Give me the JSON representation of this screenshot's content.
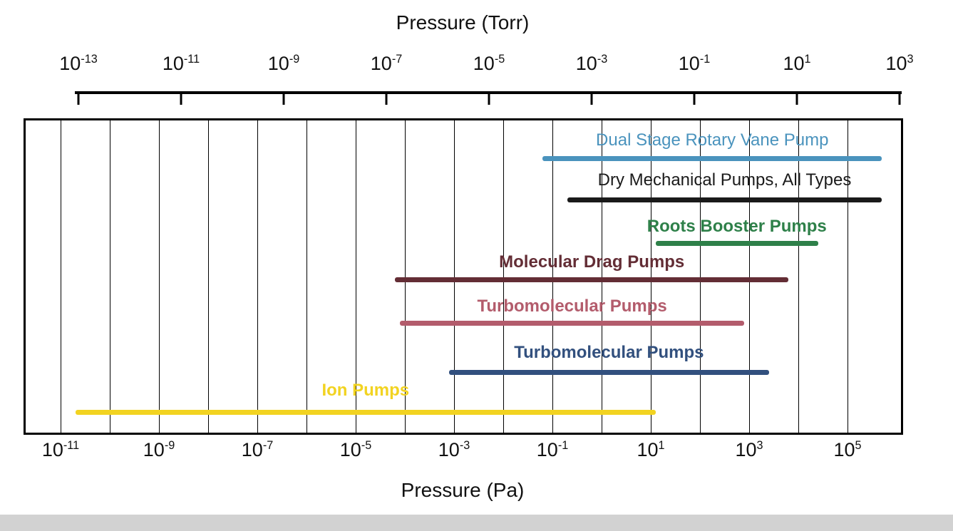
{
  "title_top": "Pressure (Torr)",
  "title_bottom": "Pressure (Pa)",
  "top_axis": {
    "base": "10",
    "exponents": [
      "-13",
      "-11",
      "-9",
      "-7",
      "-5",
      "-3",
      "-1",
      "1",
      "3"
    ],
    "unit": "Torr"
  },
  "bottom_axis": {
    "base": "10",
    "exponents": [
      "-11",
      "-9",
      "-7",
      "-5",
      "-3",
      "-1",
      "1",
      "3",
      "5"
    ],
    "unit": "Pa"
  },
  "chart_data": {
    "type": "bar",
    "subtype": "horizontal-range-bars",
    "title": "Operating pressure ranges of vacuum pumps",
    "xlabel_top": "Pressure (Torr)",
    "xlabel_bottom": "Pressure (Pa)",
    "x_scale": "log10",
    "x_unit": "Pa",
    "xlim_log10_pa": [
      -11.8,
      5.9
    ],
    "grid": true,
    "gridlines_log10_pa": [
      -11,
      -10,
      -9,
      -8,
      -7,
      -6,
      -5,
      -4,
      -3,
      -2,
      -1,
      0,
      1,
      2,
      3,
      4,
      5
    ],
    "legend": "inline-colored-labels",
    "series": [
      {
        "name": "Dual Stage Rotary Vane Pump",
        "color": "#4a93bd",
        "bold": false,
        "range_log10_pa": [
          -1.2,
          5.7
        ],
        "approx_range_pa": [
          0.06,
          500000
        ]
      },
      {
        "name": "Dry Mechanical Pumps, All Types",
        "color": "#1a1a1a",
        "bold": false,
        "range_log10_pa": [
          -0.7,
          5.7
        ],
        "approx_range_pa": [
          0.2,
          500000
        ]
      },
      {
        "name": "Roots Booster Pumps",
        "color": "#2e8049",
        "bold": true,
        "range_log10_pa": [
          1.1,
          4.4
        ],
        "approx_range_pa": [
          13,
          25000
        ]
      },
      {
        "name": "Molecular Drag Pumps",
        "color": "#632d35",
        "bold": true,
        "range_log10_pa": [
          -4.2,
          3.8
        ],
        "approx_range_pa": [
          6e-05,
          6000
        ]
      },
      {
        "name": "Turbomolecular Pumps",
        "color": "#b35c6c",
        "bold": true,
        "range_log10_pa": [
          -4.1,
          2.9
        ],
        "approx_range_pa": [
          8e-05,
          800
        ]
      },
      {
        "name": "Turbomolecular Pumps",
        "color": "#32507e",
        "bold": true,
        "range_log10_pa": [
          -3.1,
          3.4
        ],
        "approx_range_pa": [
          0.0008,
          2500
        ]
      },
      {
        "name": "Ion Pumps",
        "color": "#f2d321",
        "bold": true,
        "range_log10_pa": [
          -10.7,
          1.1
        ],
        "approx_range_pa": [
          2e-11,
          13
        ]
      }
    ]
  }
}
